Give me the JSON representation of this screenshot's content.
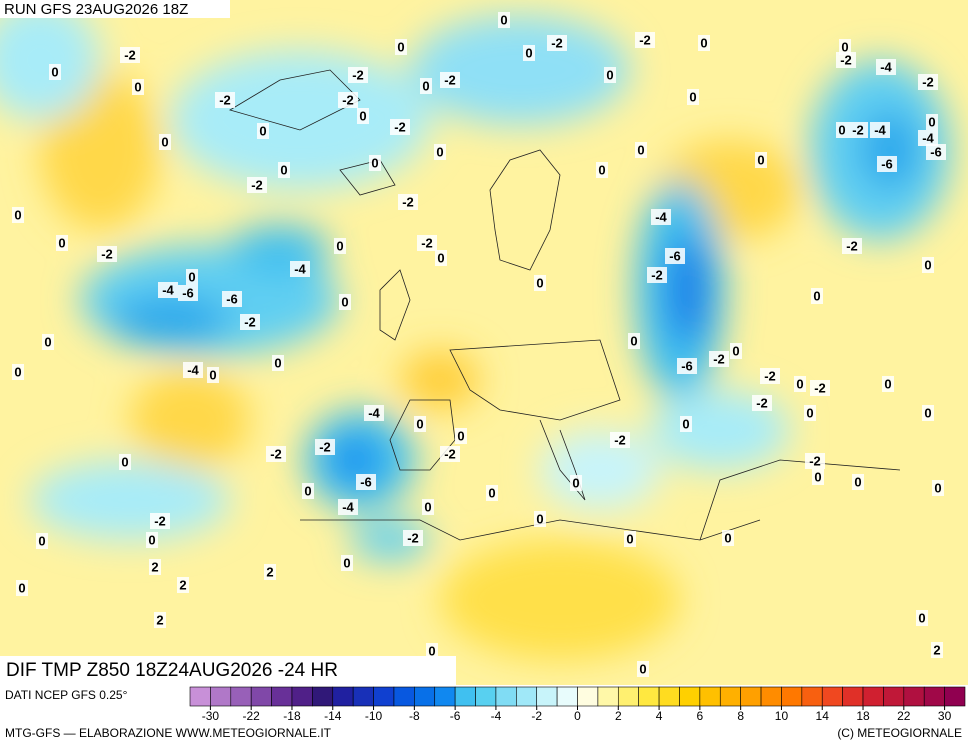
{
  "header": "RUN GFS 23AUG2026 18Z",
  "map_title": "DIF TMP Z850 18Z24AUG2026 -24 HR",
  "source": "DATI NCEP GFS 0.25°",
  "credit": "MTG-GFS — ELABORAZIONE WWW.METEOGIORNALE.IT",
  "copyright": "(C) METEOGIORNALE",
  "contour_labels": [
    -2,
    0,
    0,
    -2,
    0,
    0,
    0,
    0,
    -2,
    0,
    -4,
    -6,
    -6,
    -4,
    -2,
    0,
    0,
    -4,
    0,
    0,
    -2,
    0,
    0,
    0,
    -2,
    -2,
    0,
    0,
    -2,
    -2,
    0,
    -2,
    0,
    -2,
    0,
    0,
    0,
    0,
    -2,
    0,
    -2,
    0,
    0,
    0,
    0,
    0,
    0,
    -2,
    -4,
    -2,
    0,
    -2,
    -4,
    0,
    -4,
    -6,
    -6,
    -2,
    0,
    0,
    -4,
    -6,
    -2,
    0,
    0,
    0,
    -2,
    -6,
    -2,
    0,
    -2,
    0,
    -2,
    0,
    0,
    0,
    -2,
    0,
    -2,
    -4,
    0,
    -2,
    -2,
    -6,
    -4,
    0,
    0,
    -2,
    0,
    0,
    2,
    2,
    2,
    0,
    2,
    0,
    0,
    0,
    0,
    0,
    0,
    0,
    0,
    0,
    -2,
    0,
    0,
    0,
    0,
    2,
    -2
  ],
  "legend": {
    "ticks": [
      -30,
      -22,
      -18,
      -14,
      -10,
      -8,
      -6,
      -4,
      -2,
      0,
      2,
      4,
      6,
      8,
      10,
      14,
      18,
      22,
      30
    ],
    "colors": [
      "#c890d8",
      "#b078c8",
      "#9860b8",
      "#8048a8",
      "#683098",
      "#502088",
      "#301878",
      "#2020a0",
      "#1830b8",
      "#1040d0",
      "#0858e0",
      "#0870e8",
      "#1088f0",
      "#40c0f0",
      "#58d0f0",
      "#80dcf4",
      "#a0e8f8",
      "#c8f4fa",
      "#e8fcfc",
      "#fffde0",
      "#fff8a8",
      "#fff070",
      "#ffe840",
      "#ffdc20",
      "#ffd000",
      "#ffc000",
      "#ffb000",
      "#ffa000",
      "#ff8c00",
      "#ff7800",
      "#f86010",
      "#f04820",
      "#e03028",
      "#d02030",
      "#c01838",
      "#b01040",
      "#a00848",
      "#900050"
    ]
  }
}
